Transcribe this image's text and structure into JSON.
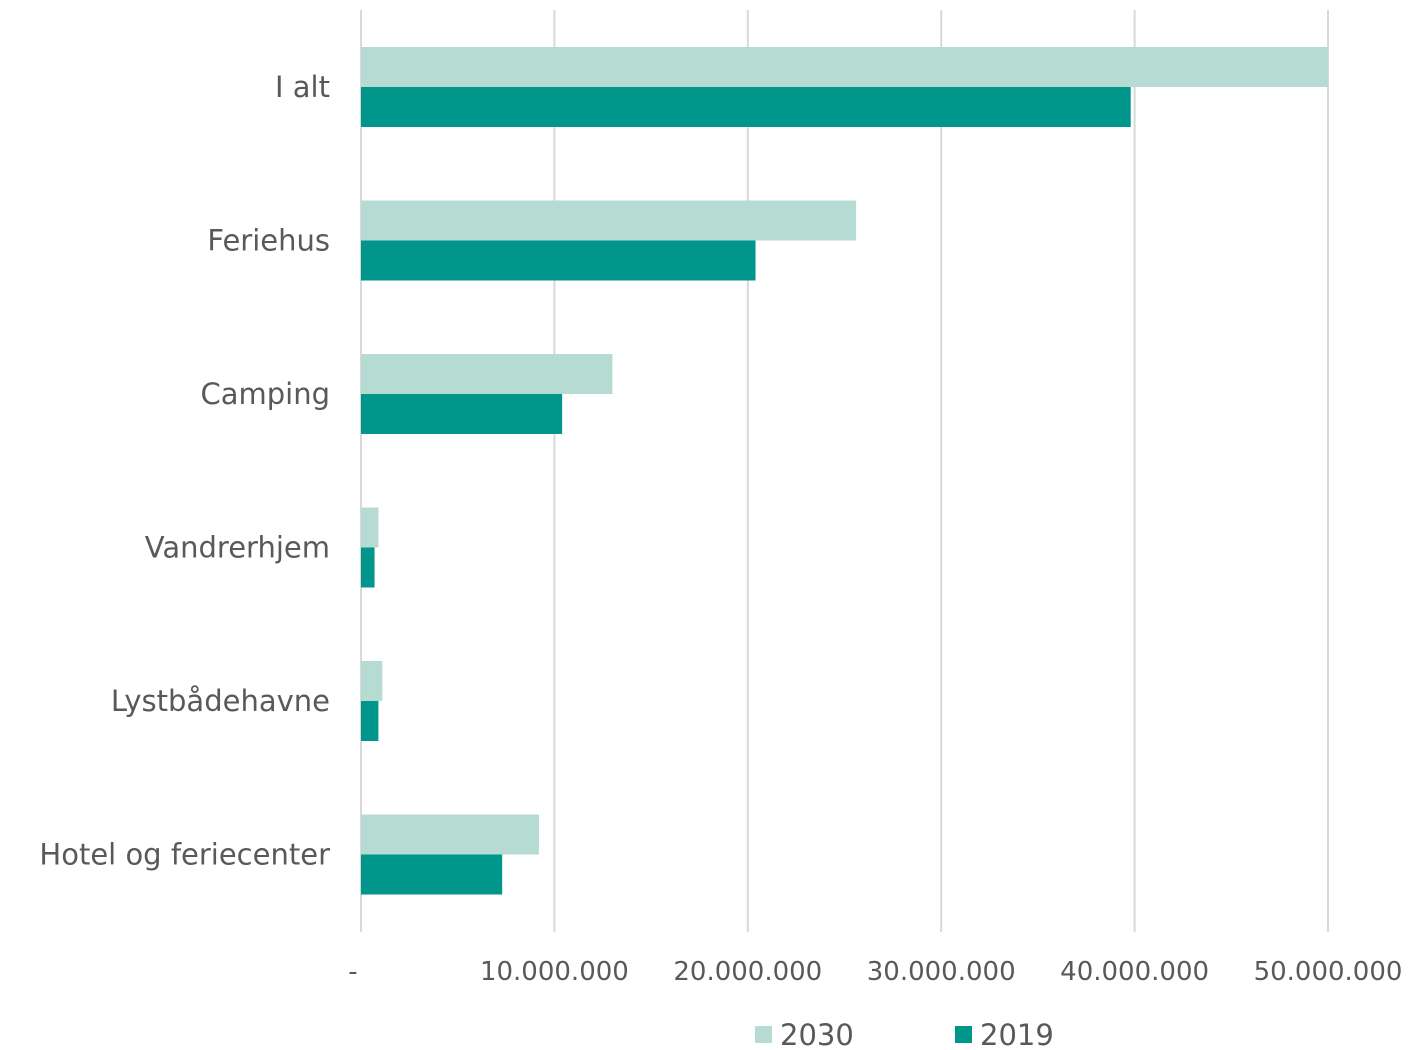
{
  "chart_data": {
    "type": "bar",
    "orientation": "horizontal",
    "categories": [
      "I alt",
      "Feriehus",
      "Camping",
      "Vandrerhjem",
      "Lystbådehavne",
      "Hotel og feriecenter"
    ],
    "series": [
      {
        "name": "2030",
        "values": [
          50000000,
          25600000,
          13000000,
          900000,
          1100000,
          9200000
        ],
        "color": "#b5dbd3"
      },
      {
        "name": "2019",
        "values": [
          39800000,
          20400000,
          10400000,
          700000,
          900000,
          7300000
        ],
        "color": "#00968c"
      }
    ],
    "x_ticks": [
      "-",
      "10.000.000",
      "20.000.000",
      "30.000.000",
      "40.000.000",
      "50.000.000"
    ],
    "x_tick_values": [
      0,
      10000000,
      20000000,
      30000000,
      40000000,
      50000000
    ],
    "xlim": [
      0,
      50000000
    ],
    "grid": "vertical",
    "legend_position": "bottom",
    "legend_order": [
      "2030",
      "2019"
    ],
    "title": "",
    "xlabel": "",
    "ylabel": ""
  }
}
